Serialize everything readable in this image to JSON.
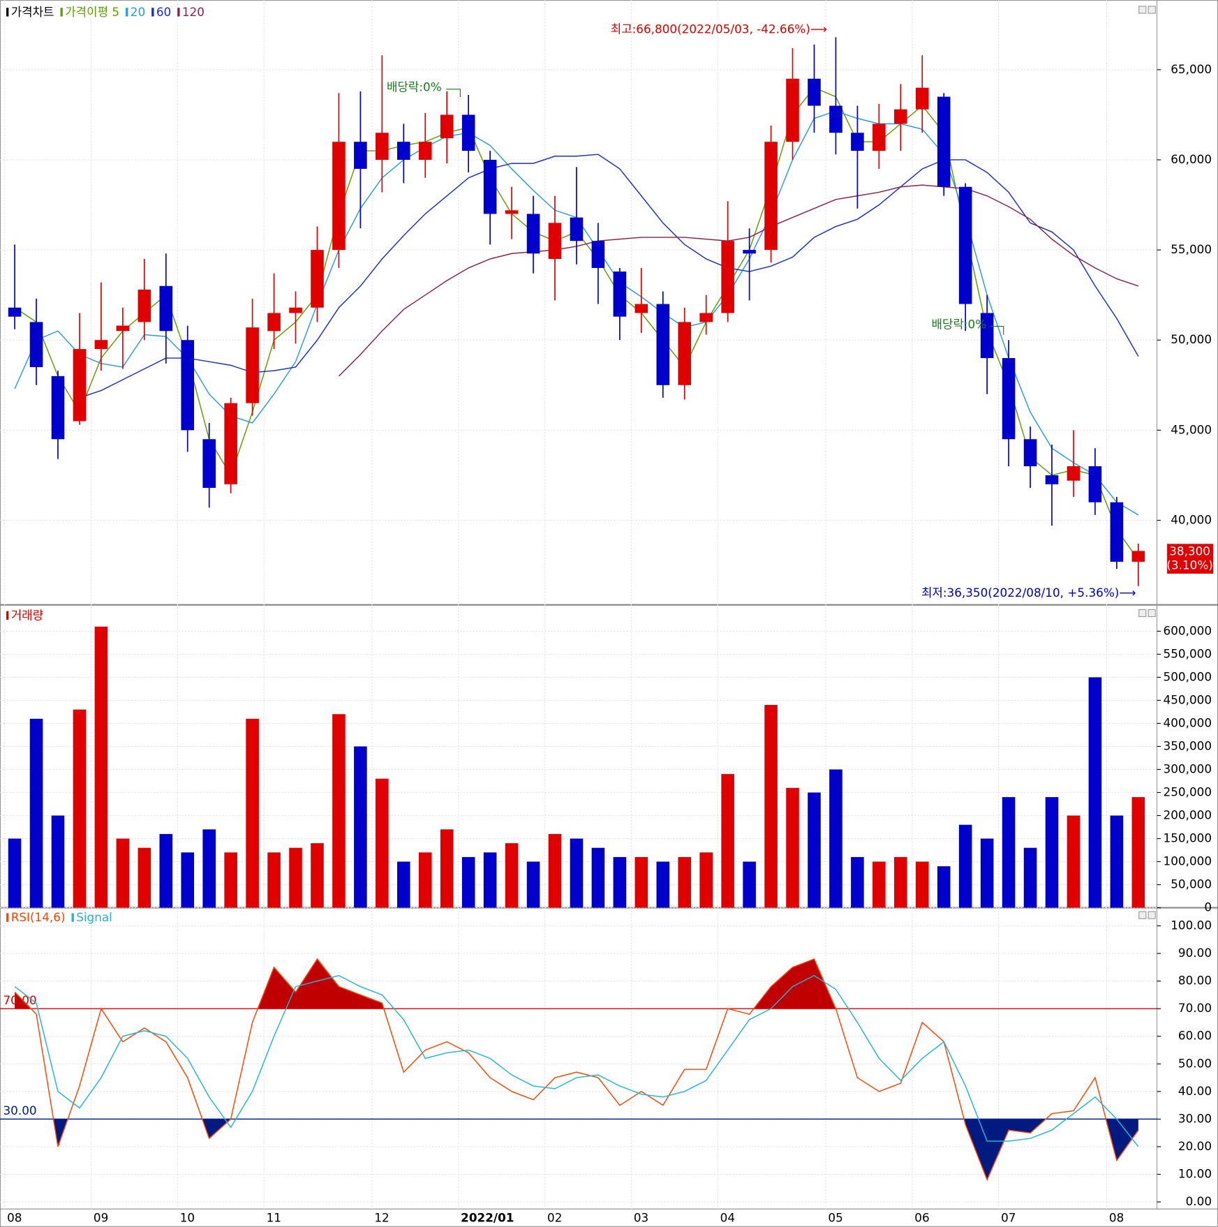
{
  "chart_data": [
    {
      "type": "candlestick",
      "title": "가격차트",
      "up_color": "#e00000",
      "down_color": "#0000cc",
      "open": [
        51800,
        51000,
        48000,
        45500,
        49500,
        50500,
        51000,
        53000,
        50000,
        44500,
        42000,
        46500,
        50500,
        51500,
        51800,
        55000,
        61000,
        60000,
        61000,
        60000,
        61200,
        62500,
        60000,
        57000,
        57000,
        54500,
        56800,
        55500,
        53800,
        51500,
        52000,
        47500,
        51000,
        51500,
        55000,
        55000,
        61000,
        64500,
        63000,
        61500,
        60500,
        62000,
        62800,
        63500,
        58500,
        51500,
        49000,
        44500,
        42500,
        42200,
        43000,
        41000,
        37700
      ],
      "high": [
        55300,
        52300,
        48300,
        51500,
        53200,
        51800,
        54500,
        54800,
        50800,
        45400,
        46800,
        52300,
        53700,
        52700,
        56300,
        63700,
        63800,
        65800,
        62000,
        62600,
        63800,
        63600,
        60500,
        58500,
        58000,
        58000,
        59600,
        56500,
        54000,
        54000,
        52700,
        51800,
        52500,
        57700,
        56200,
        61900,
        66200,
        66400,
        66800,
        63000,
        63100,
        64200,
        65800,
        63700,
        58700,
        52500,
        50000,
        45200,
        44200,
        45000,
        44000,
        41300,
        38700
      ],
      "low": [
        50600,
        47500,
        43400,
        45300,
        48300,
        48400,
        50000,
        48700,
        43800,
        40700,
        41500,
        45800,
        49500,
        49800,
        51000,
        54000,
        56200,
        58200,
        58700,
        59000,
        59800,
        59300,
        55300,
        55600,
        53700,
        52200,
        54200,
        52000,
        50000,
        50400,
        46800,
        46700,
        50300,
        51000,
        52200,
        54300,
        60000,
        61500,
        60300,
        57300,
        59500,
        60500,
        61500,
        58000,
        50500,
        47000,
        43000,
        41800,
        39700,
        41300,
        40300,
        37300,
        36350
      ],
      "close": [
        51300,
        48500,
        44500,
        49500,
        50000,
        50800,
        52800,
        50500,
        45000,
        41800,
        46500,
        50700,
        51500,
        51800,
        55000,
        61000,
        59500,
        61500,
        60000,
        61000,
        62500,
        60500,
        57000,
        57200,
        54800,
        56500,
        55500,
        54000,
        51300,
        52000,
        47500,
        51000,
        51500,
        55500,
        54800,
        61000,
        64500,
        63000,
        61500,
        60500,
        62000,
        62800,
        64000,
        58500,
        52000,
        49000,
        44500,
        43000,
        42000,
        43000,
        41000,
        37700,
        38300
      ],
      "series": [
        {
          "name": "가격이평 5",
          "color": "#5fa000",
          "values": [
            51800,
            51000,
            48000,
            46000,
            49000,
            50500,
            51500,
            52500,
            49000,
            44500,
            42500,
            46000,
            50000,
            51000,
            52500,
            57000,
            60500,
            60500,
            60800,
            61000,
            61500,
            61800,
            59000,
            57000,
            56000,
            55500,
            56000,
            54500,
            52500,
            51500,
            50000,
            48500,
            51000,
            53000,
            55000,
            58500,
            62500,
            64000,
            63500,
            61000,
            61000,
            62000,
            63000,
            61500,
            56000,
            50500,
            47500,
            43500,
            42500,
            42800,
            42500,
            39500,
            37800
          ]
        },
        {
          "name": "20",
          "color": "#2b9be0",
          "values": [
            47300,
            50000,
            50500,
            49200,
            48700,
            48500,
            50300,
            50200,
            49000,
            47000,
            45800,
            45400,
            47000,
            48800,
            52000,
            55000,
            57300,
            59000,
            60000,
            60700,
            61300,
            61500,
            60800,
            59500,
            58300,
            57200,
            56800,
            55000,
            53200,
            52400,
            51500,
            50700,
            51000,
            52500,
            54500,
            57000,
            60000,
            62300,
            62700,
            62300,
            62000,
            62000,
            61700,
            60300,
            56800,
            52500,
            49000,
            46000,
            44000,
            43200,
            42500,
            41000,
            40300
          ]
        },
        {
          "name": "60",
          "color": "#1a2ed0",
          "values": [
            null,
            null,
            null,
            46800,
            47200,
            47800,
            48400,
            49000,
            49000,
            48800,
            48600,
            48200,
            48300,
            48500,
            50000,
            51800,
            53000,
            54500,
            55800,
            57000,
            58000,
            59000,
            59500,
            59800,
            59800,
            60200,
            60200,
            60300,
            59500,
            58000,
            56500,
            55300,
            54500,
            54000,
            53800,
            54100,
            54600,
            55700,
            56300,
            56700,
            57500,
            58500,
            59500,
            60000,
            60000,
            59300,
            58200,
            56500,
            56000,
            55000,
            53000,
            51200,
            49100
          ]
        },
        {
          "name": "120",
          "color": "#8b2346",
          "values": [
            null,
            null,
            null,
            null,
            null,
            null,
            null,
            null,
            null,
            null,
            null,
            null,
            null,
            null,
            null,
            48000,
            49200,
            50500,
            51700,
            52500,
            53300,
            54000,
            54500,
            54800,
            54900,
            55000,
            55200,
            55500,
            55600,
            55700,
            55700,
            55700,
            55600,
            55500,
            55700,
            56300,
            56800,
            57300,
            57800,
            58000,
            58200,
            58500,
            58600,
            58500,
            58400,
            58000,
            57400,
            56700,
            55600,
            54700,
            54000,
            53400,
            53000
          ]
        }
      ],
      "ylim": [
        35350,
        68650
      ],
      "yticks": [
        {
          "value": 40000,
          "label": "40,000"
        },
        {
          "value": 45000,
          "label": "45,000"
        },
        {
          "value": 50000,
          "label": "50,000"
        },
        {
          "value": 55000,
          "label": "55,000"
        },
        {
          "value": 60000,
          "label": "60,000"
        },
        {
          "value": 65000,
          "label": "65,000"
        }
      ],
      "annotations": [
        {
          "text": "최고:66,800(2022/05/03, -42.66%)⟶",
          "color": "#e00000"
        },
        {
          "text": "배당락:0%",
          "color": "#1a7a1a"
        },
        {
          "text": "배당락:0%",
          "color": "#1a7a1a"
        },
        {
          "text": "최저:36,350(2022/08/10, +5.36%)⟶",
          "color": "#0000cc"
        }
      ],
      "last_price": {
        "value": 38300,
        "label": "38,300"
      },
      "last_change": "(3.10%)"
    },
    {
      "type": "bar",
      "title": "거래량",
      "title_color": "#e00000",
      "values": [
        150000,
        410000,
        200000,
        430000,
        610000,
        150000,
        130000,
        160000,
        120000,
        170000,
        120000,
        410000,
        120000,
        130000,
        140000,
        420000,
        350000,
        280000,
        100000,
        120000,
        170000,
        110000,
        120000,
        140000,
        100000,
        160000,
        150000,
        130000,
        110000,
        110000,
        100000,
        110000,
        120000,
        290000,
        100000,
        440000,
        260000,
        250000,
        300000,
        110000,
        100000,
        110000,
        100000,
        90000,
        180000,
        150000,
        240000,
        130000,
        240000,
        200000,
        500000,
        200000,
        240000
      ],
      "ylim": [
        0,
        652000
      ],
      "yticks": [
        0,
        {
          "value": 50000,
          "label": "50,000"
        },
        {
          "value": 100000,
          "label": "100,000"
        },
        {
          "value": 150000,
          "label": "150,000"
        },
        {
          "value": 200000,
          "label": "200,000"
        },
        {
          "value": 250000,
          "label": "250,000"
        },
        {
          "value": 300000,
          "label": "300,000"
        },
        {
          "value": 350000,
          "label": "350,000"
        },
        {
          "value": 400000,
          "label": "400,000"
        },
        {
          "value": 450000,
          "label": "450,000"
        },
        {
          "value": 500000,
          "label": "500,000"
        },
        {
          "value": 550000,
          "label": "550,000"
        },
        {
          "value": 600000,
          "label": "600,000"
        }
      ]
    },
    {
      "type": "line",
      "categories": [
        "08",
        null,
        null,
        null,
        "09",
        null,
        null,
        null,
        "10",
        null,
        null,
        null,
        "11",
        null,
        null,
        null,
        null,
        "12",
        null,
        null,
        null,
        "2022/01",
        null,
        null,
        null,
        "02",
        null,
        null,
        null,
        "03",
        null,
        null,
        null,
        "04",
        null,
        null,
        null,
        null,
        "05",
        null,
        null,
        null,
        "06",
        null,
        null,
        null,
        "07",
        null,
        null,
        null,
        null,
        "08",
        null
      ],
      "series": [
        {
          "name": "RSI(14,6)",
          "color": "#ff4500",
          "values": [
            76,
            68,
            20,
            42,
            70,
            58,
            63,
            58,
            45,
            23,
            30,
            65,
            85,
            76,
            88,
            78,
            75,
            72,
            47,
            55,
            58,
            54,
            45,
            40,
            37,
            45,
            47,
            45,
            35,
            40,
            35,
            48,
            48,
            70,
            68,
            78,
            85,
            88,
            70,
            45,
            40,
            43,
            65,
            58,
            28,
            8,
            26,
            25,
            32,
            33,
            45,
            15,
            26
          ]
        },
        {
          "name": "Signal",
          "color": "#22b5d6",
          "values": [
            78,
            72,
            40,
            34,
            45,
            60,
            62,
            60,
            52,
            38,
            27,
            40,
            60,
            78,
            80,
            82,
            78,
            75,
            66,
            52,
            54,
            55,
            52,
            46,
            42,
            41,
            45,
            46,
            42,
            39,
            38,
            40,
            44,
            55,
            66,
            70,
            78,
            82,
            77,
            65,
            52,
            44,
            52,
            58,
            42,
            22,
            22,
            23,
            26,
            32,
            38,
            30,
            20
          ]
        }
      ],
      "levels": [
        {
          "value": 70,
          "label": "70.00",
          "color": "#e00000",
          "fill": "#c00000"
        },
        {
          "value": 30,
          "label": "30.00",
          "color": "#00208a",
          "fill": "#001a80"
        }
      ],
      "ylim": [
        -2,
        106
      ],
      "yticks": [
        {
          "value": 0,
          "label": "0.00"
        },
        {
          "value": 10,
          "label": "10.00"
        },
        {
          "value": 20,
          "label": "20.00"
        },
        {
          "value": 30,
          "label": "30.00"
        },
        {
          "value": 40,
          "label": "40.00"
        },
        {
          "value": 50,
          "label": "50.00"
        },
        {
          "value": 60,
          "label": "60.00"
        },
        {
          "value": 70,
          "label": "70.00"
        },
        {
          "value": 80,
          "label": "80.00"
        },
        {
          "value": 90,
          "label": "90.00"
        },
        {
          "value": 100,
          "label": "100.00"
        }
      ]
    }
  ]
}
